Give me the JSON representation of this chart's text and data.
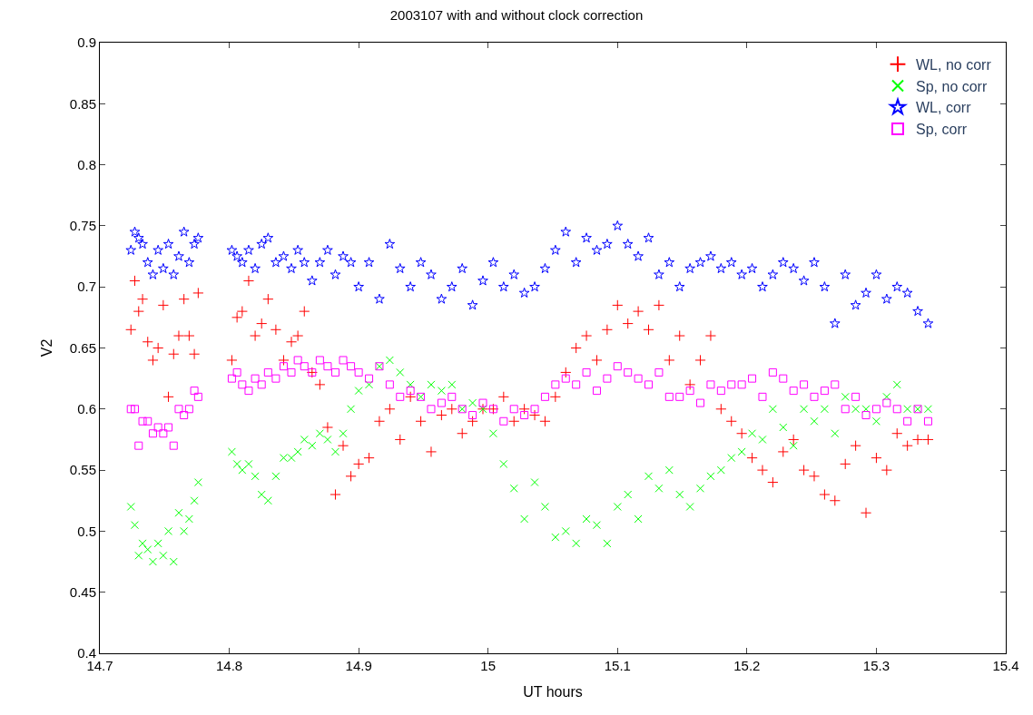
{
  "chart_data": {
    "type": "scatter",
    "title": "2003107 with and without clock correction",
    "xlabel": "UT hours",
    "ylabel": "V2",
    "xlim": [
      14.7,
      15.4
    ],
    "xticks": [
      14.7,
      14.8,
      14.9,
      15,
      15.1,
      15.2,
      15.3,
      15.4
    ],
    "ylim": [
      0.4,
      0.9
    ],
    "yticks": [
      0.4,
      0.45,
      0.5,
      0.55,
      0.6,
      0.65,
      0.7,
      0.75,
      0.8,
      0.85,
      0.9
    ],
    "grid": false,
    "legend": "top right",
    "x": [
      14.724,
      14.727,
      14.73,
      14.733,
      14.737,
      14.741,
      14.745,
      14.749,
      14.753,
      14.757,
      14.761,
      14.765,
      14.769,
      14.773,
      14.776,
      14.802,
      14.806,
      14.81,
      14.815,
      14.82,
      14.825,
      14.83,
      14.836,
      14.842,
      14.848,
      14.853,
      14.858,
      14.864,
      14.87,
      14.876,
      14.882,
      14.888,
      14.894,
      14.9,
      14.908,
      14.916,
      14.924,
      14.932,
      14.94,
      14.948,
      14.956,
      14.964,
      14.972,
      14.98,
      14.988,
      14.996,
      15.004,
      15.012,
      15.02,
      15.028,
      15.036,
      15.044,
      15.052,
      15.06,
      15.068,
      15.076,
      15.084,
      15.092,
      15.1,
      15.108,
      15.116,
      15.124,
      15.132,
      15.14,
      15.148,
      15.156,
      15.164,
      15.172,
      15.18,
      15.188,
      15.196,
      15.204,
      15.212,
      15.22,
      15.228,
      15.236,
      15.244,
      15.252,
      15.26,
      15.268,
      15.276,
      15.284,
      15.292,
      15.3,
      15.308,
      15.316,
      15.324,
      15.332,
      15.34
    ],
    "series": [
      {
        "name": "WL, no corr",
        "color": "#ff0000",
        "marker": "cross",
        "values": [
          0.665,
          0.705,
          0.68,
          0.69,
          0.655,
          0.64,
          0.65,
          0.685,
          0.61,
          0.645,
          0.66,
          0.69,
          0.66,
          0.645,
          0.695,
          0.64,
          0.675,
          0.68,
          0.705,
          0.66,
          0.67,
          0.69,
          0.665,
          0.64,
          0.655,
          0.66,
          0.68,
          0.63,
          0.62,
          0.585,
          0.53,
          0.57,
          0.545,
          0.555,
          0.56,
          0.59,
          0.6,
          0.575,
          0.61,
          0.59,
          0.565,
          0.595,
          0.6,
          0.58,
          0.59,
          0.6,
          0.6,
          0.61,
          0.59,
          0.6,
          0.595,
          0.59,
          0.61,
          0.63,
          0.65,
          0.66,
          0.64,
          0.665,
          0.685,
          0.67,
          0.68,
          0.665,
          0.685,
          0.64,
          0.66,
          0.62,
          0.64,
          0.66,
          0.6,
          0.59,
          0.58,
          0.56,
          0.55,
          0.54,
          0.565,
          0.575,
          0.55,
          0.545,
          0.53,
          0.525,
          0.555,
          0.57,
          0.515,
          0.56,
          0.55,
          0.58,
          0.57,
          0.575,
          0.575
        ]
      },
      {
        "name": "Sp, no corr",
        "color": "#00ff00",
        "marker": "x",
        "values": [
          0.52,
          0.505,
          0.48,
          0.49,
          0.485,
          0.475,
          0.49,
          0.48,
          0.5,
          0.475,
          0.515,
          0.5,
          0.51,
          0.525,
          0.54,
          0.565,
          0.555,
          0.55,
          0.555,
          0.545,
          0.53,
          0.525,
          0.545,
          0.56,
          0.56,
          0.565,
          0.575,
          0.57,
          0.58,
          0.575,
          0.565,
          0.58,
          0.6,
          0.615,
          0.62,
          0.635,
          0.64,
          0.63,
          0.62,
          0.61,
          0.62,
          0.615,
          0.62,
          0.6,
          0.605,
          0.6,
          0.58,
          0.555,
          0.535,
          0.51,
          0.54,
          0.52,
          0.495,
          0.5,
          0.49,
          0.51,
          0.505,
          0.49,
          0.52,
          0.53,
          0.51,
          0.545,
          0.535,
          0.55,
          0.53,
          0.52,
          0.535,
          0.545,
          0.55,
          0.56,
          0.565,
          0.58,
          0.575,
          0.6,
          0.585,
          0.57,
          0.6,
          0.59,
          0.6,
          0.58,
          0.61,
          0.6,
          0.6,
          0.59,
          0.61,
          0.62,
          0.6,
          0.6,
          0.6
        ]
      },
      {
        "name": "WL, corr",
        "color": "#0000ff",
        "marker": "star",
        "values": [
          0.73,
          0.745,
          0.74,
          0.735,
          0.72,
          0.71,
          0.73,
          0.715,
          0.735,
          0.71,
          0.725,
          0.745,
          0.72,
          0.735,
          0.74,
          0.73,
          0.725,
          0.72,
          0.73,
          0.715,
          0.735,
          0.74,
          0.72,
          0.725,
          0.715,
          0.73,
          0.72,
          0.705,
          0.72,
          0.73,
          0.71,
          0.725,
          0.72,
          0.7,
          0.72,
          0.69,
          0.735,
          0.715,
          0.7,
          0.72,
          0.71,
          0.69,
          0.7,
          0.715,
          0.685,
          0.705,
          0.72,
          0.7,
          0.71,
          0.695,
          0.7,
          0.715,
          0.73,
          0.745,
          0.72,
          0.74,
          0.73,
          0.735,
          0.75,
          0.735,
          0.725,
          0.74,
          0.71,
          0.72,
          0.7,
          0.715,
          0.72,
          0.725,
          0.715,
          0.72,
          0.71,
          0.715,
          0.7,
          0.71,
          0.72,
          0.715,
          0.705,
          0.72,
          0.7,
          0.67,
          0.71,
          0.685,
          0.695,
          0.71,
          0.69,
          0.7,
          0.695,
          0.68,
          0.67
        ]
      },
      {
        "name": "Sp, corr",
        "color": "#ff00ff",
        "marker": "square",
        "values": [
          0.6,
          0.6,
          0.57,
          0.59,
          0.59,
          0.58,
          0.585,
          0.58,
          0.585,
          0.57,
          0.6,
          0.595,
          0.6,
          0.615,
          0.61,
          0.625,
          0.63,
          0.62,
          0.615,
          0.625,
          0.62,
          0.63,
          0.625,
          0.635,
          0.63,
          0.64,
          0.635,
          0.63,
          0.64,
          0.635,
          0.63,
          0.64,
          0.635,
          0.63,
          0.625,
          0.635,
          0.62,
          0.61,
          0.615,
          0.61,
          0.6,
          0.605,
          0.61,
          0.6,
          0.595,
          0.605,
          0.6,
          0.59,
          0.6,
          0.595,
          0.6,
          0.61,
          0.62,
          0.625,
          0.62,
          0.63,
          0.615,
          0.625,
          0.635,
          0.63,
          0.625,
          0.62,
          0.63,
          0.61,
          0.61,
          0.615,
          0.605,
          0.62,
          0.615,
          0.62,
          0.62,
          0.625,
          0.61,
          0.63,
          0.625,
          0.615,
          0.62,
          0.61,
          0.615,
          0.62,
          0.6,
          0.61,
          0.595,
          0.6,
          0.605,
          0.6,
          0.59,
          0.6,
          0.59
        ]
      }
    ]
  }
}
